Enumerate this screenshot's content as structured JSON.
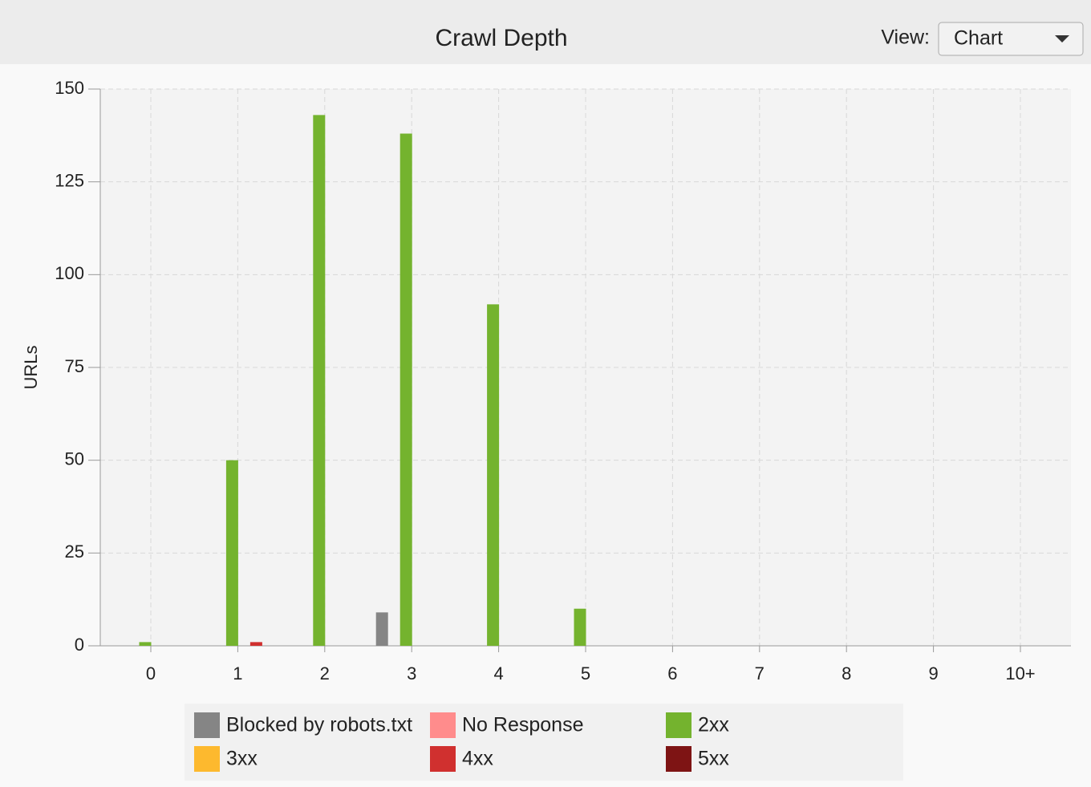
{
  "chart_data": {
    "type": "bar",
    "title": "Crawl Depth",
    "y_label": "URLs",
    "categories": [
      "0",
      "1",
      "2",
      "3",
      "4",
      "5",
      "6",
      "7",
      "8",
      "9",
      "10+"
    ],
    "series": [
      {
        "name": "Blocked by robots.txt",
        "color": "#858585",
        "values": [
          0,
          0,
          0,
          9,
          0,
          0,
          0,
          0,
          0,
          0,
          0
        ]
      },
      {
        "name": "No Response",
        "color": "#ff8c8c",
        "values": [
          0,
          0,
          0,
          0,
          0,
          0,
          0,
          0,
          0,
          0,
          0
        ]
      },
      {
        "name": "2xx",
        "color": "#74b32e",
        "values": [
          1,
          50,
          143,
          138,
          92,
          10,
          0,
          0,
          0,
          0,
          0
        ]
      },
      {
        "name": "3xx",
        "color": "#fdb92e",
        "values": [
          0,
          0,
          0,
          0,
          0,
          0,
          0,
          0,
          0,
          0,
          0
        ]
      },
      {
        "name": "4xx",
        "color": "#d0302f",
        "values": [
          0,
          1,
          0,
          0,
          0,
          0,
          0,
          0,
          0,
          0,
          0
        ]
      },
      {
        "name": "5xx",
        "color": "#7e1414",
        "values": [
          0,
          0,
          0,
          0,
          0,
          0,
          0,
          0,
          0,
          0,
          0
        ]
      }
    ],
    "ylim": [
      0,
      150
    ],
    "yticks": [
      0,
      25,
      50,
      75,
      100,
      125,
      150
    ],
    "grid": true
  },
  "controls": {
    "view_label": "View:",
    "view_value": "Chart"
  }
}
